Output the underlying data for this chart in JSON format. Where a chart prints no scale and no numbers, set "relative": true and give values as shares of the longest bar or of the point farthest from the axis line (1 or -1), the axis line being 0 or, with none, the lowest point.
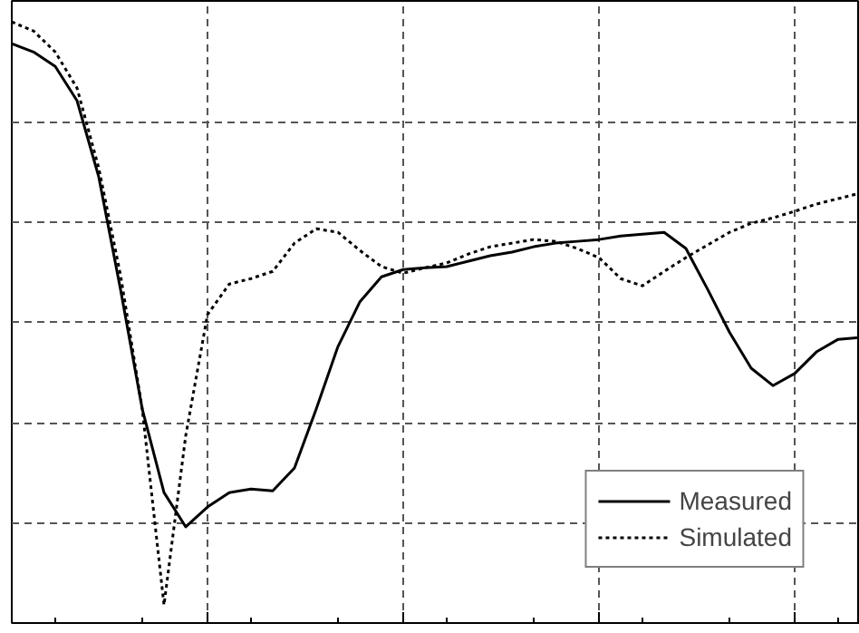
{
  "chart_data": {
    "type": "line",
    "relative": true,
    "grid": true,
    "legend": "bottom right",
    "categories": [
      null,
      null,
      null,
      null,
      null,
      null,
      null,
      null,
      null,
      null,
      null,
      null,
      null,
      null,
      null,
      null,
      null,
      null,
      null,
      null,
      null,
      null,
      null,
      null,
      null,
      null,
      null,
      null,
      null,
      null,
      null,
      null,
      null,
      null,
      null,
      null,
      null,
      null,
      null,
      null
    ],
    "series": [
      {
        "name": "Measured",
        "color": "#000000",
        "line_style": "solid",
        "values": [
          0.964,
          0.95,
          0.926,
          0.869,
          0.742,
          0.555,
          0.356,
          0.217,
          0.16,
          0.193,
          0.217,
          0.223,
          0.22,
          0.258,
          0.356,
          0.46,
          0.534,
          0.576,
          0.588,
          0.591,
          0.593,
          0.602,
          0.611,
          0.617,
          0.626,
          0.632,
          0.635,
          0.638,
          0.644,
          0.647,
          0.65,
          0.623,
          0.555,
          0.484,
          0.424,
          0.395,
          0.415,
          0.451,
          0.472,
          0.475
        ]
      },
      {
        "name": "Simulated",
        "color": "#000000",
        "line_style": "dotted",
        "values": [
          1.0,
          0.985,
          0.95,
          0.89,
          0.757,
          0.579,
          0.356,
          0.03,
          0.312,
          0.513,
          0.564,
          0.573,
          0.585,
          0.632,
          0.656,
          0.65,
          0.62,
          0.593,
          0.582,
          0.591,
          0.599,
          0.614,
          0.626,
          0.632,
          0.638,
          0.635,
          0.623,
          0.608,
          0.573,
          0.561,
          0.585,
          0.608,
          0.629,
          0.65,
          0.665,
          0.674,
          0.685,
          0.697,
          0.706,
          0.715
        ]
      }
    ]
  }
}
